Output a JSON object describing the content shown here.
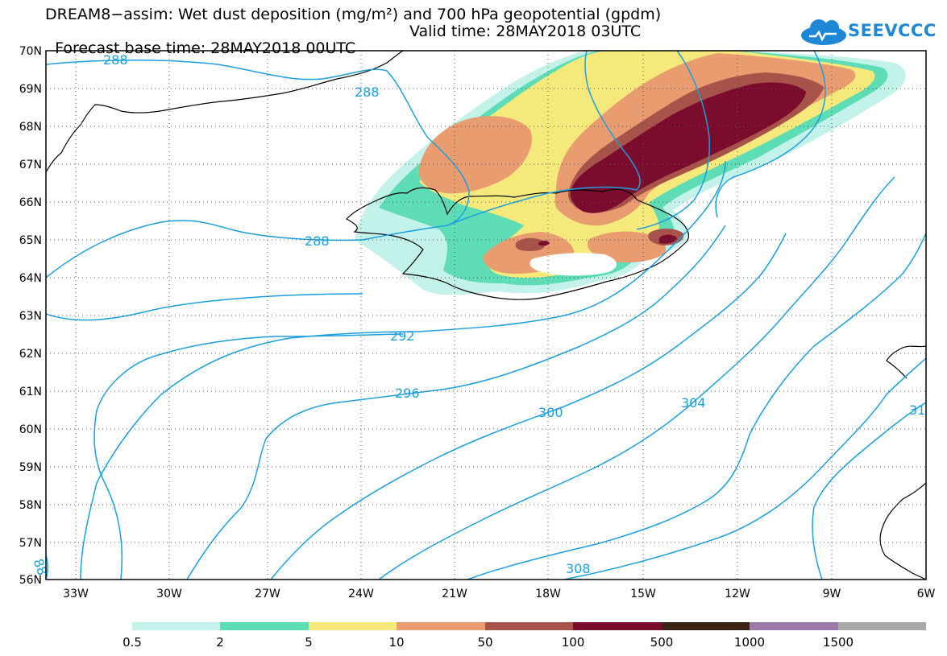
{
  "header": {
    "title_line1": "DREAM8−assim: Wet dust deposition (mg/m²) and 700 hPa geopotential (gpdm)",
    "base_time": "Forecast base time: 28MAY2018 00UTC",
    "valid_time": "Valid time: 28MAY2018 03UTC"
  },
  "logo": {
    "text": "SEEVCCC",
    "color": "#1e88d6"
  },
  "axes": {
    "lat_labels": [
      "70N",
      "69N",
      "68N",
      "67N",
      "66N",
      "65N",
      "64N",
      "63N",
      "62N",
      "61N",
      "60N",
      "59N",
      "58N",
      "57N",
      "56N"
    ],
    "lon_labels": [
      "33W",
      "30W",
      "27W",
      "24W",
      "21W",
      "18W",
      "15W",
      "12W",
      "9W",
      "6W"
    ]
  },
  "contours": {
    "color": "#1b9fe0",
    "labels": [
      "288",
      "288",
      "288",
      "292",
      "296",
      "300",
      "304",
      "308",
      "31",
      "88"
    ]
  },
  "colorbar": {
    "colors": [
      "#c2f2ea",
      "#5ddcb6",
      "#f5e97c",
      "#e89c70",
      "#a8534a",
      "#7b0c2e",
      "#3a2215",
      "#9b79a8",
      "#a9a9a9"
    ],
    "labels": [
      "0.5",
      "2",
      "5",
      "10",
      "50",
      "100",
      "500",
      "1000",
      "1500"
    ]
  }
}
